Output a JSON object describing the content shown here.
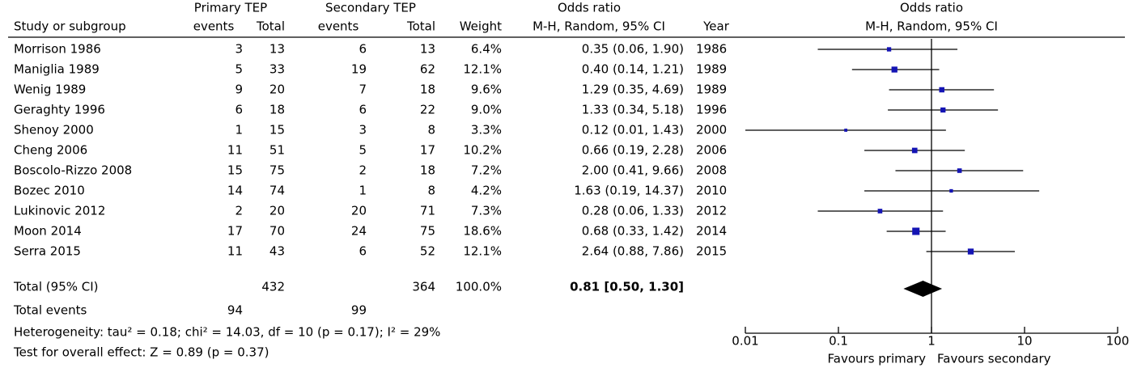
{
  "chart_data": {
    "type": "forest",
    "headers": {
      "group1": "Primary TEP",
      "group2": "Secondary TEP",
      "study": "Study or subgroup",
      "events1": "events",
      "total1": "Total",
      "events2": "events",
      "total2": "Total",
      "weight": "Weight",
      "or_title": "Odds ratio",
      "or_sub": "M-H, Random, 95% CI",
      "year": "Year"
    },
    "plot_title": "Odds ratio",
    "plot_subtitle": "M-H, Random, 95% CI",
    "studies": [
      {
        "name": "Morrison 1986",
        "events1": 3,
        "total1": 13,
        "events2": 6,
        "total2": 13,
        "weight": 6.4,
        "weight_label": "6.4%",
        "or": 0.35,
        "lo": 0.06,
        "hi": 1.9,
        "ci_label": "0.35 (0.06, 1.90)",
        "year": 1986
      },
      {
        "name": "Maniglia 1989",
        "events1": 5,
        "total1": 33,
        "events2": 19,
        "total2": 62,
        "weight": 12.1,
        "weight_label": "12.1%",
        "or": 0.4,
        "lo": 0.14,
        "hi": 1.21,
        "ci_label": "0.40 (0.14, 1.21)",
        "year": 1989
      },
      {
        "name": "Wenig 1989",
        "events1": 9,
        "total1": 20,
        "events2": 7,
        "total2": 18,
        "weight": 9.6,
        "weight_label": "9.6%",
        "or": 1.29,
        "lo": 0.35,
        "hi": 4.69,
        "ci_label": "1.29 (0.35, 4.69)",
        "year": 1989
      },
      {
        "name": "Geraghty 1996",
        "events1": 6,
        "total1": 18,
        "events2": 6,
        "total2": 22,
        "weight": 9.0,
        "weight_label": "9.0%",
        "or": 1.33,
        "lo": 0.34,
        "hi": 5.18,
        "ci_label": "1.33 (0.34, 5.18)",
        "year": 1996
      },
      {
        "name": "Shenoy 2000",
        "events1": 1,
        "total1": 15,
        "events2": 3,
        "total2": 8,
        "weight": 3.3,
        "weight_label": "3.3%",
        "or": 0.12,
        "lo": 0.01,
        "hi": 1.43,
        "ci_label": "0.12 (0.01, 1.43)",
        "year": 2000
      },
      {
        "name": "Cheng 2006",
        "events1": 11,
        "total1": 51,
        "events2": 5,
        "total2": 17,
        "weight": 10.2,
        "weight_label": "10.2%",
        "or": 0.66,
        "lo": 0.19,
        "hi": 2.28,
        "ci_label": "0.66 (0.19, 2.28)",
        "year": 2006
      },
      {
        "name": "Boscolo-Rizzo 2008",
        "events1": 15,
        "total1": 75,
        "events2": 2,
        "total2": 18,
        "weight": 7.2,
        "weight_label": "7.2%",
        "or": 2.0,
        "lo": 0.41,
        "hi": 9.66,
        "ci_label": "2.00 (0.41, 9.66)",
        "year": 2008
      },
      {
        "name": "Bozec 2010",
        "events1": 14,
        "total1": 74,
        "events2": 1,
        "total2": 8,
        "weight": 4.2,
        "weight_label": "4.2%",
        "or": 1.63,
        "lo": 0.19,
        "hi": 14.37,
        "ci_label": "1.63 (0.19, 14.37)",
        "year": 2010
      },
      {
        "name": "Lukinovic 2012",
        "events1": 2,
        "total1": 20,
        "events2": 20,
        "total2": 71,
        "weight": 7.3,
        "weight_label": "7.3%",
        "or": 0.28,
        "lo": 0.06,
        "hi": 1.33,
        "ci_label": "0.28 (0.06, 1.33)",
        "year": 2012
      },
      {
        "name": "Moon 2014",
        "events1": 17,
        "total1": 70,
        "events2": 24,
        "total2": 75,
        "weight": 18.6,
        "weight_label": "18.6%",
        "or": 0.68,
        "lo": 0.33,
        "hi": 1.42,
        "ci_label": "0.68 (0.33, 1.42)",
        "year": 2014
      },
      {
        "name": "Serra 2015",
        "events1": 11,
        "total1": 43,
        "events2": 6,
        "total2": 52,
        "weight": 12.1,
        "weight_label": "12.1%",
        "or": 2.64,
        "lo": 0.88,
        "hi": 7.86,
        "ci_label": "2.64 (0.88, 7.86)",
        "year": 2015
      }
    ],
    "total": {
      "name": "Total (95% CI)",
      "total1": 432,
      "total2": 364,
      "weight": 100.0,
      "weight_label": "100.0%",
      "or": 0.81,
      "lo": 0.5,
      "hi": 1.3,
      "ci_label": "0.81 [0.50, 1.30]"
    },
    "total_events": {
      "name": "Total events",
      "events1": 94,
      "events2": 99
    },
    "heterogeneity": "Heterogeneity: tau² = 0.18; chi² = 14.03, df = 10 (p = 0.17); I² = 29%",
    "overall_effect": "Test for overall effect: Z = 0.89 (p = 0.37)",
    "xlim": [
      0.01,
      100
    ],
    "xticks": [
      0.01,
      0.1,
      1,
      10,
      100
    ],
    "log_x": true,
    "null_value": 1,
    "x_label_left": "Favours primary",
    "x_label_right": "Favours secondary",
    "color": "#1414b4"
  }
}
